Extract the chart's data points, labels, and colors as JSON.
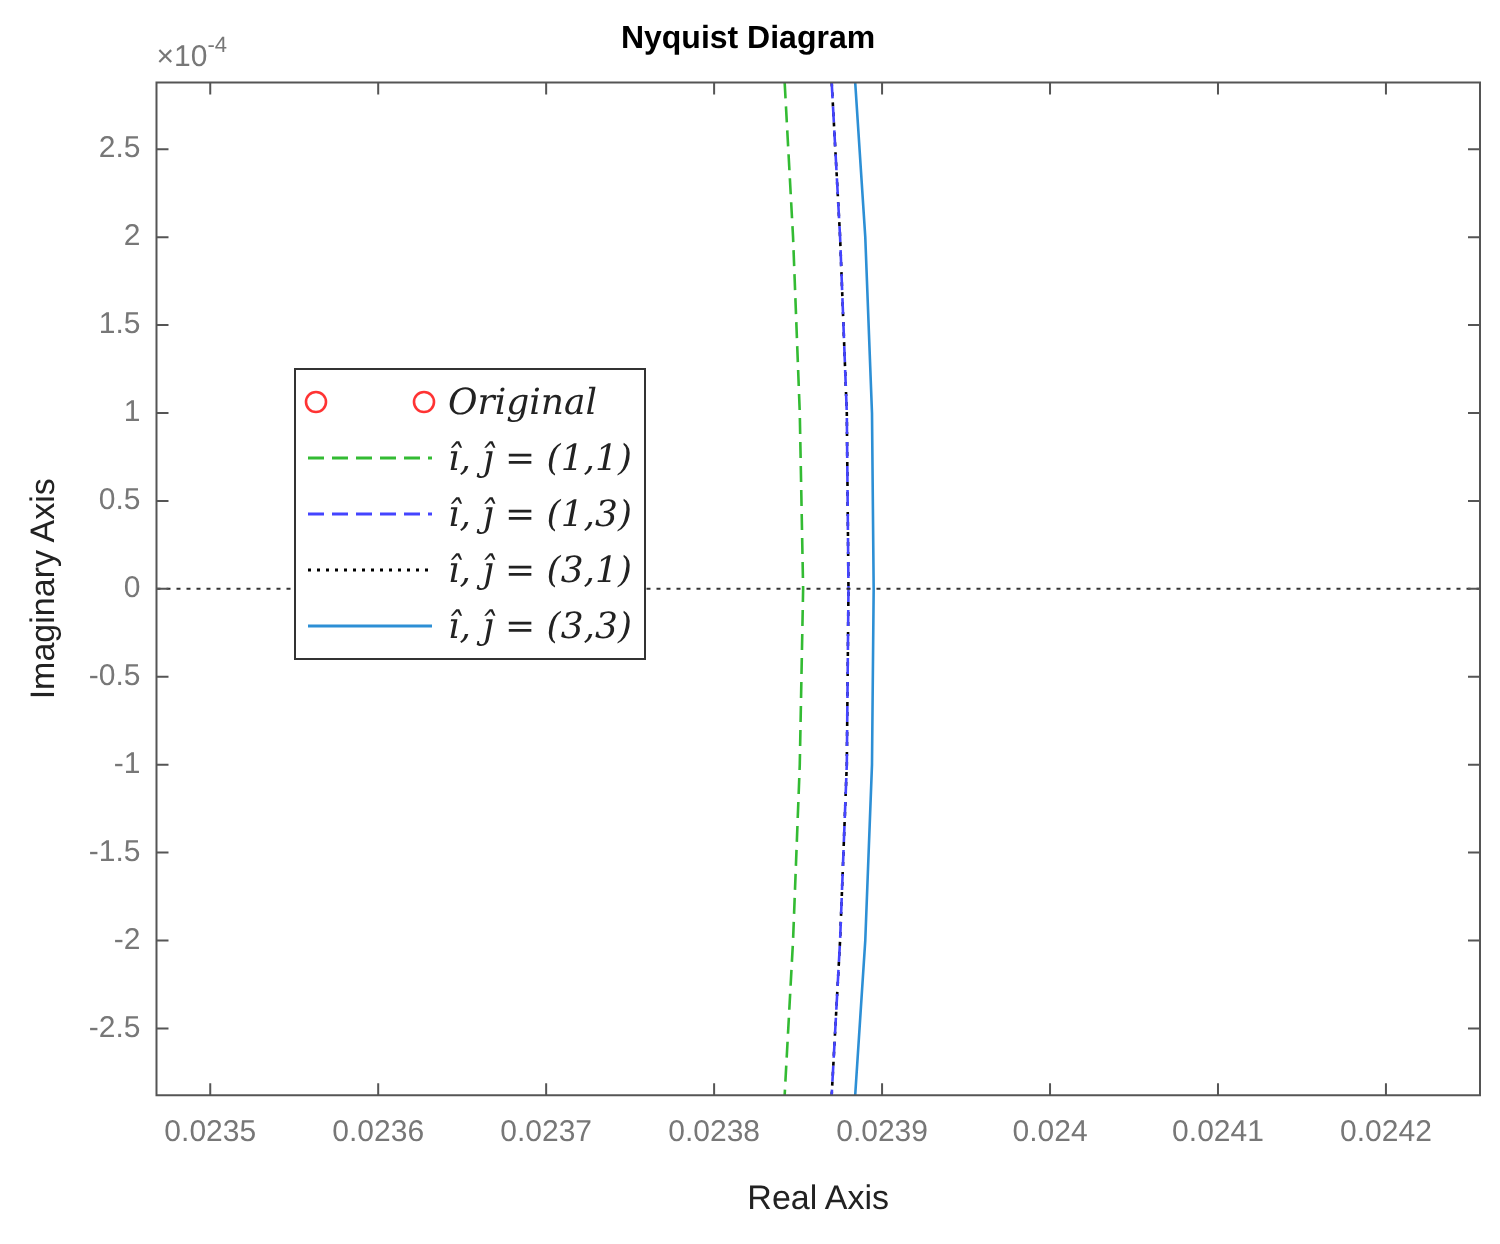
{
  "chart_data": {
    "type": "line",
    "title": "Nyquist Diagram",
    "xlabel": "Real Axis",
    "ylabel": "Imaginary Axis",
    "annotations": [
      "×10$^{-4}$"
    ],
    "xlim": [
      0.023468,
      0.024256
    ],
    "xticks": [
      0.0235,
      0.0236,
      0.0237,
      0.0238,
      0.0239,
      0.024,
      0.0241,
      0.0242
    ],
    "ylim": [
      -2.88,
      2.88
    ],
    "yticks": [
      -2.5,
      -2,
      -1.5,
      -1,
      -0.5,
      0,
      0.5,
      1,
      1.5,
      2,
      2.5
    ],
    "grid": false,
    "legend": "left",
    "ref_lines": [
      {
        "axis": "y",
        "value": 0,
        "color": "#333333",
        "line_style": "dotted"
      }
    ],
    "series": [
      {
        "name": "Original",
        "color": "#ff3333",
        "marker": "circle"
      },
      {
        "name": "î, ĵ = (1,1)",
        "color": "#33bb33",
        "line_style": "dashed",
        "marker": "none",
        "x": [
          0.023842,
          0.023847,
          0.023851,
          0.023853,
          0.023851,
          0.023847,
          0.023842
        ],
        "values": [
          2.88,
          2,
          1,
          0,
          -1,
          -2,
          -2.88
        ]
      },
      {
        "name": "î, ĵ = (1,3)",
        "color": "#4444ff",
        "line_style": "dashed",
        "marker": "none",
        "x": [
          0.02387,
          0.023875,
          0.023879,
          0.02388,
          0.023879,
          0.023875,
          0.02387
        ],
        "values": [
          2.88,
          2,
          1,
          0,
          -1,
          -2,
          -2.88
        ]
      },
      {
        "name": "î, ĵ = (3,1)",
        "color": "#000000",
        "line_style": "dotted",
        "marker": "none",
        "x": [
          0.02387,
          0.023875,
          0.023879,
          0.02388,
          0.023879,
          0.023875,
          0.02387
        ],
        "values": [
          2.88,
          2,
          1,
          0,
          -1,
          -2,
          -2.88
        ]
      },
      {
        "name": "î, ĵ = (3,3)",
        "color": "#2d8fd5",
        "line_style": "solid",
        "marker": "none",
        "x": [
          0.023884,
          0.02389,
          0.023894,
          0.023895,
          0.023894,
          0.02389,
          0.023884
        ],
        "values": [
          2.88,
          2,
          1,
          0,
          -1,
          -2,
          -2.88
        ]
      }
    ]
  }
}
